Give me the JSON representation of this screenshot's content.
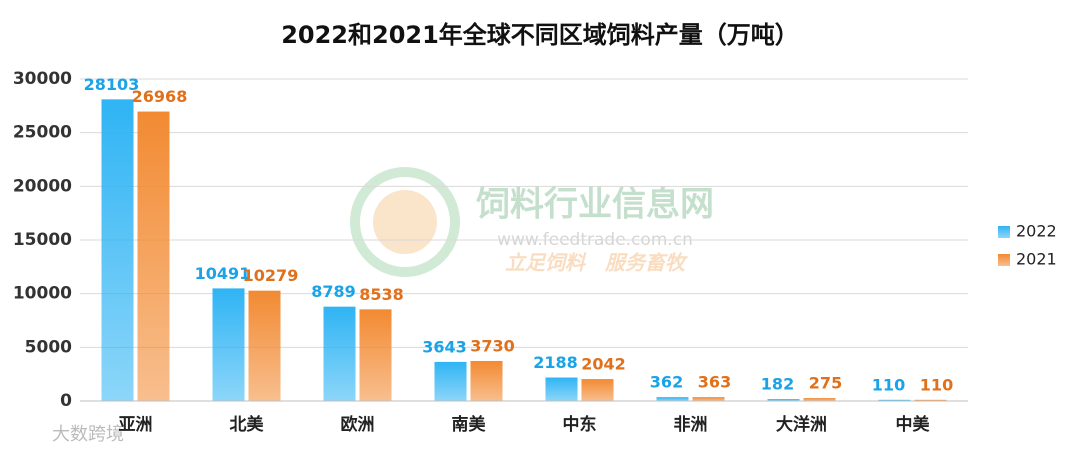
{
  "chart_data": {
    "type": "bar",
    "title": "2022和2021年全球不同区域饲料产量（万吨）",
    "categories": [
      "亚洲",
      "北美",
      "欧洲",
      "南美",
      "中东",
      "非洲",
      "大洋洲",
      "中美"
    ],
    "series": [
      {
        "name": "2022",
        "color": "#2fb4f4",
        "label_color": "#1aa3e6",
        "values": [
          28103,
          10491,
          8789,
          3643,
          2188,
          362,
          182,
          110
        ]
      },
      {
        "name": "2021",
        "color": "#f28a32",
        "label_color": "#e0711c",
        "values": [
          26968,
          10279,
          8538,
          3730,
          2042,
          363,
          275,
          110
        ]
      }
    ],
    "ylim": [
      0,
      30000
    ],
    "yticks": [
      0,
      5000,
      10000,
      15000,
      20000,
      25000,
      30000
    ],
    "grid": true,
    "legend": "right",
    "watermark": {
      "name": "饲料行业信息网",
      "url": "www.feedtrade.com.cn",
      "slogan": "立足饲料　服务畜牧"
    },
    "source": "大数跨境"
  }
}
